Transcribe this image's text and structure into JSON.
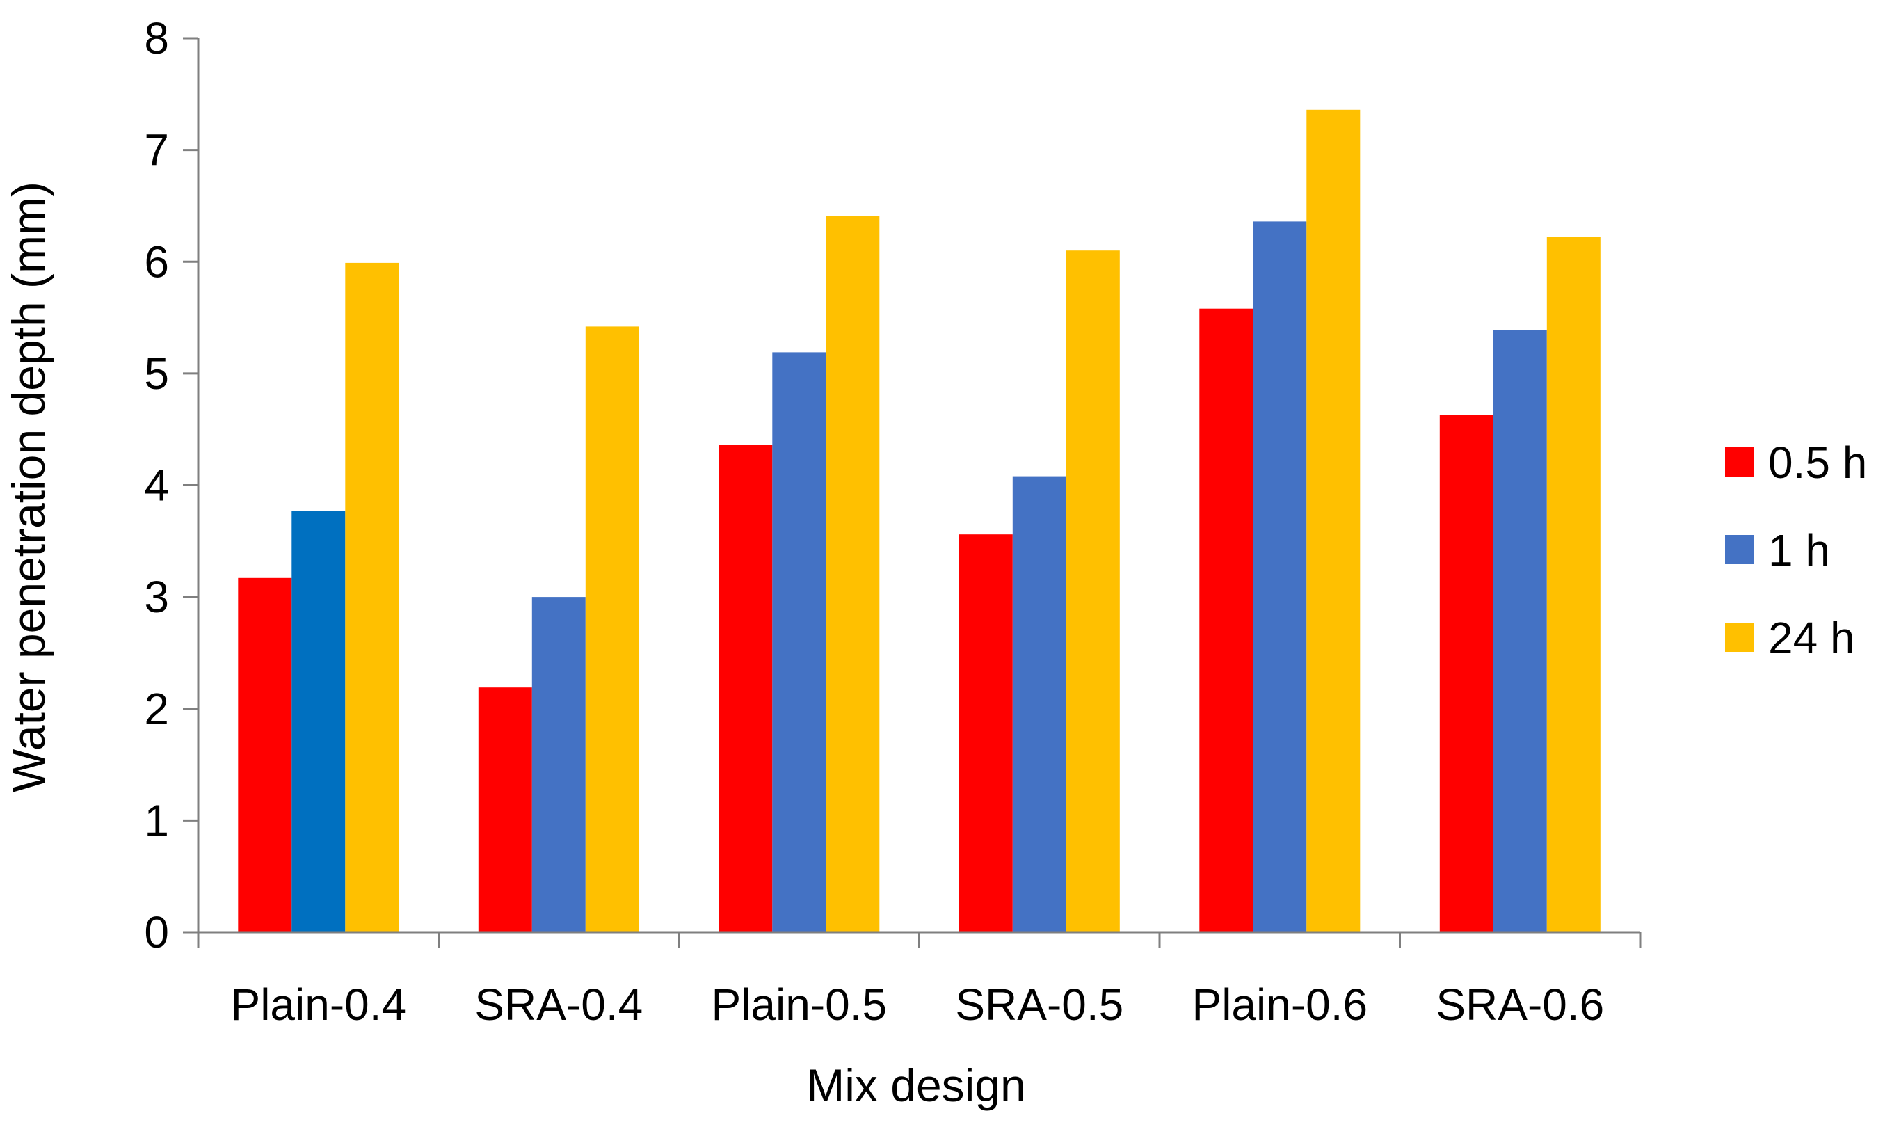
{
  "chart_data": {
    "type": "bar",
    "title": "",
    "xlabel": "Mix design",
    "ylabel": "Water penetration depth (mm)",
    "ylim": [
      0,
      8
    ],
    "yticks": [
      "0",
      "1",
      "2",
      "3",
      "4",
      "5",
      "6",
      "7",
      "8"
    ],
    "grid": false,
    "legend_position": "right",
    "categories": [
      "Plain-0.4",
      "SRA-0.4",
      "Plain-0.5",
      "SRA-0.5",
      "Plain-0.6",
      "SRA-0.6"
    ],
    "series": [
      {
        "name": "0.5 h",
        "color": "#ff0000",
        "values": [
          3.17,
          2.19,
          4.36,
          3.56,
          5.58,
          4.63
        ]
      },
      {
        "name": "1 h",
        "color": "#4472c4",
        "values": [
          3.77,
          3.0,
          5.19,
          4.08,
          6.36,
          5.39
        ]
      },
      {
        "name": "24 h",
        "color": "#ffc000",
        "values": [
          5.99,
          5.42,
          6.41,
          6.1,
          7.36,
          6.22
        ]
      }
    ],
    "highlight": {
      "series_index": 1,
      "category_index": 0,
      "color": "#0070c0"
    }
  }
}
